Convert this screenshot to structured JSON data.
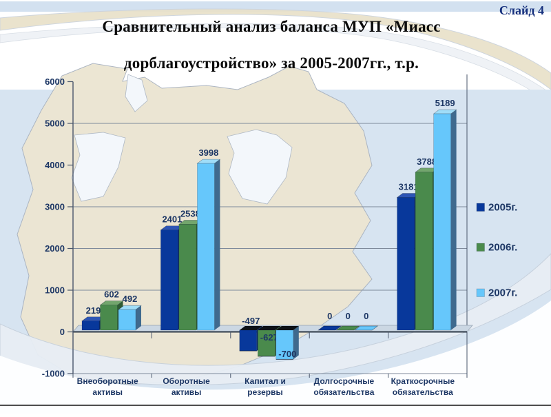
{
  "slide": {
    "label": "Слайд 4",
    "title_lines": [
      "Сравнительный анализ баланса МУП «Миасс",
      "дорблагоустройство» за 2005-2007гг., т.р."
    ]
  },
  "chart_data": {
    "type": "bar",
    "title": "Сравнительный анализ баланса МУП «Миасс дорблагоустройство» за 2005-2007гг., т.р.",
    "categories": [
      "Внеоборотные активы",
      "Оборотные активы",
      "Капитал и резервы",
      "Долгосрочные обязательства",
      "Краткосрочные обязательства"
    ],
    "series": [
      {
        "name": "2005г.",
        "color": "#08389b",
        "side_color": "#0a2a6a",
        "top_color": "#2d55b5",
        "values": [
          219,
          2401,
          -497,
          0,
          3181
        ]
      },
      {
        "name": "2006г.",
        "color": "#4a8a4c",
        "side_color": "#2f5c33",
        "top_color": "#73a66d",
        "values": [
          602,
          2538,
          -627,
          0,
          3788
        ]
      },
      {
        "name": "2007г.",
        "color": "#66c7fb",
        "side_color": "#3f6a8e",
        "top_color": "#9fddf8",
        "values": [
          492,
          3998,
          -700,
          0,
          5189
        ]
      }
    ],
    "ylim": [
      -1000,
      6000
    ],
    "ytick_step": 1000,
    "yticks": [
      -1000,
      0,
      1000,
      2000,
      3000,
      4000,
      5000,
      6000
    ],
    "gridlines_at": [
      1000,
      2000,
      3000,
      5000
    ],
    "grid": true,
    "value_labels": true,
    "legend_position": "right",
    "effect": "3d"
  }
}
